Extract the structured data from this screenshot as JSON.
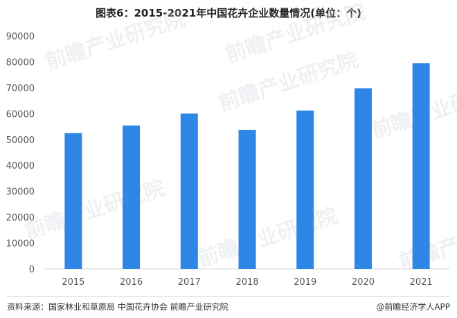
{
  "chart_data": {
    "type": "bar",
    "title": "图表6：2015-2021年中国花卉企业数量情况(单位：个)",
    "categories": [
      "2015",
      "2016",
      "2017",
      "2018",
      "2019",
      "2020",
      "2021"
    ],
    "values": [
      52500,
      55400,
      60000,
      53700,
      61200,
      69800,
      79500
    ],
    "ylim": [
      0,
      90000
    ],
    "yticks": [
      0,
      10000,
      20000,
      30000,
      40000,
      50000,
      60000,
      70000,
      80000,
      90000
    ],
    "xlabel": "",
    "ylabel": "",
    "bar_color": "#2e86e6",
    "grid": false
  },
  "footer": {
    "source": "资料来源：国家林业和草原局 中国花卉协会 前瞻产业研究院",
    "brand": "@前瞻经济学人APP"
  },
  "watermark": "前瞻产业研究院"
}
